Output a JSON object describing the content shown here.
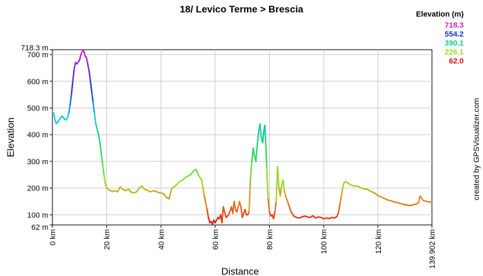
{
  "chart_data": {
    "type": "line",
    "title": "18/ Levico Terme > Brescia",
    "xlabel": "Distance",
    "ylabel": "Elevation",
    "xlim": [
      0,
      139.902
    ],
    "ylim": [
      62,
      718.3
    ],
    "grid": true,
    "x_ticks": [
      {
        "value": 0,
        "label": "0 km"
      },
      {
        "value": 20,
        "label": "20 km"
      },
      {
        "value": 40,
        "label": "40 km"
      },
      {
        "value": 60,
        "label": "60 km"
      },
      {
        "value": 80,
        "label": "80 km"
      },
      {
        "value": 100,
        "label": "100 km"
      },
      {
        "value": 120,
        "label": "120 km"
      },
      {
        "value": 139.902,
        "label": "139.902 km"
      }
    ],
    "y_ticks": [
      {
        "value": 62,
        "label": "62 m"
      },
      {
        "value": 100,
        "label": "100 m"
      },
      {
        "value": 200,
        "label": "200 m"
      },
      {
        "value": 300,
        "label": "300 m"
      },
      {
        "value": 400,
        "label": "400 m"
      },
      {
        "value": 500,
        "label": "500 m"
      },
      {
        "value": 600,
        "label": "600 m"
      },
      {
        "value": 700,
        "label": "700 m"
      },
      {
        "value": 718.3,
        "label": "718.3 m"
      }
    ],
    "legend": {
      "title": "Elevation (m)",
      "position": "top-right",
      "entries": [
        {
          "label": "718.3",
          "color": "#cc22cc"
        },
        {
          "label": "554.2",
          "color": "#1133dd"
        },
        {
          "label": "390.1",
          "color": "#11cc88"
        },
        {
          "label": "226.1",
          "color": "#99dd22"
        },
        {
          "label": "62.0",
          "color": "#dd1111"
        }
      ]
    },
    "color_scale": [
      {
        "value": 62,
        "color": "#dd1111"
      },
      {
        "value": 144,
        "color": "#e87a1a"
      },
      {
        "value": 226.1,
        "color": "#99dd22"
      },
      {
        "value": 308,
        "color": "#33dd55"
      },
      {
        "value": 390.1,
        "color": "#11cc88"
      },
      {
        "value": 472,
        "color": "#11ccdd"
      },
      {
        "value": 554.2,
        "color": "#1133dd"
      },
      {
        "value": 636,
        "color": "#6622dd"
      },
      {
        "value": 718.3,
        "color": "#cc22cc"
      }
    ],
    "series": [
      {
        "points": [
          [
            0,
            485
          ],
          [
            0.5,
            480
          ],
          [
            1,
            450
          ],
          [
            1.5,
            442
          ],
          [
            2,
            448
          ],
          [
            3,
            462
          ],
          [
            3.5,
            470
          ],
          [
            4,
            465
          ],
          [
            4.5,
            458
          ],
          [
            5,
            455
          ],
          [
            5.5,
            462
          ],
          [
            6,
            480
          ],
          [
            6.5,
            510
          ],
          [
            7,
            550
          ],
          [
            7.5,
            600
          ],
          [
            8,
            645
          ],
          [
            8.5,
            670
          ],
          [
            9,
            665
          ],
          [
            9.5,
            672
          ],
          [
            10,
            680
          ],
          [
            10.5,
            700
          ],
          [
            11,
            712
          ],
          [
            11.3,
            718
          ],
          [
            11.7,
            710
          ],
          [
            12,
            695
          ],
          [
            12.5,
            690
          ],
          [
            13,
            665
          ],
          [
            13.5,
            640
          ],
          [
            14,
            600
          ],
          [
            14.5,
            560
          ],
          [
            15,
            520
          ],
          [
            15.5,
            480
          ],
          [
            16,
            440
          ],
          [
            16.5,
            420
          ],
          [
            17,
            400
          ],
          [
            17.5,
            370
          ],
          [
            18,
            330
          ],
          [
            18.5,
            290
          ],
          [
            19,
            250
          ],
          [
            19.5,
            215
          ],
          [
            20,
            200
          ],
          [
            21,
            192
          ],
          [
            22,
            188
          ],
          [
            23,
            190
          ],
          [
            24,
            186
          ],
          [
            25,
            205
          ],
          [
            26,
            195
          ],
          [
            27,
            190
          ],
          [
            28,
            196
          ],
          [
            29,
            185
          ],
          [
            30,
            182
          ],
          [
            31,
            186
          ],
          [
            32,
            200
          ],
          [
            33,
            208
          ],
          [
            34,
            195
          ],
          [
            35,
            192
          ],
          [
            36,
            186
          ],
          [
            37,
            190
          ],
          [
            38,
            188
          ],
          [
            39,
            184
          ],
          [
            40,
            182
          ],
          [
            41,
            178
          ],
          [
            42,
            165
          ],
          [
            43,
            160
          ],
          [
            44,
            200
          ],
          [
            45,
            205
          ],
          [
            46,
            215
          ],
          [
            47,
            225
          ],
          [
            48,
            230
          ],
          [
            49,
            240
          ],
          [
            50,
            245
          ],
          [
            51,
            250
          ],
          [
            52,
            265
          ],
          [
            53,
            270
          ],
          [
            54,
            245
          ],
          [
            55,
            230
          ],
          [
            55.5,
            200
          ],
          [
            56,
            170
          ],
          [
            57,
            120
          ],
          [
            57.5,
            90
          ],
          [
            58,
            70
          ],
          [
            58.5,
            75
          ],
          [
            59,
            65
          ],
          [
            59.5,
            80
          ],
          [
            60,
            70
          ],
          [
            61,
            90
          ],
          [
            61.5,
            85
          ],
          [
            62,
            100
          ],
          [
            62.5,
            70
          ],
          [
            63,
            130
          ],
          [
            63.5,
            110
          ],
          [
            64,
            90
          ],
          [
            65,
            100
          ],
          [
            66,
            130
          ],
          [
            66.5,
            105
          ],
          [
            67,
            150
          ],
          [
            67.5,
            120
          ],
          [
            68,
            110
          ],
          [
            69,
            150
          ],
          [
            69.5,
            130
          ],
          [
            70,
            90
          ],
          [
            71,
            120
          ],
          [
            71.5,
            100
          ],
          [
            72,
            100
          ],
          [
            72.5,
            110
          ],
          [
            73,
            235
          ],
          [
            73.5,
            300
          ],
          [
            74,
            350
          ],
          [
            74.5,
            320
          ],
          [
            75,
            300
          ],
          [
            75.5,
            360
          ],
          [
            76,
            410
          ],
          [
            76.5,
            440
          ],
          [
            77,
            390
          ],
          [
            77.5,
            370
          ],
          [
            78,
            420
          ],
          [
            78.3,
            435
          ],
          [
            78.6,
            380
          ],
          [
            79,
            280
          ],
          [
            79.5,
            160
          ],
          [
            80,
            110
          ],
          [
            80.5,
            95
          ],
          [
            81,
            100
          ],
          [
            81.5,
            85
          ],
          [
            82,
            110
          ],
          [
            82.5,
            150
          ],
          [
            83,
            280
          ],
          [
            83.5,
            200
          ],
          [
            84,
            170
          ],
          [
            84.5,
            210
          ],
          [
            85,
            230
          ],
          [
            85.5,
            190
          ],
          [
            86,
            170
          ],
          [
            87,
            140
          ],
          [
            88,
            110
          ],
          [
            89,
            95
          ],
          [
            90,
            90
          ],
          [
            91,
            88
          ],
          [
            92,
            92
          ],
          [
            93,
            95
          ],
          [
            94,
            92
          ],
          [
            95,
            90
          ],
          [
            96,
            96
          ],
          [
            97,
            88
          ],
          [
            98,
            92
          ],
          [
            99,
            90
          ],
          [
            100,
            85
          ],
          [
            101,
            88
          ],
          [
            102,
            86
          ],
          [
            103,
            90
          ],
          [
            104,
            88
          ],
          [
            105,
            95
          ],
          [
            105.5,
            110
          ],
          [
            106,
            140
          ],
          [
            106.5,
            170
          ],
          [
            107,
            200
          ],
          [
            107.5,
            220
          ],
          [
            108,
            225
          ],
          [
            109,
            218
          ],
          [
            110,
            212
          ],
          [
            111,
            208
          ],
          [
            112,
            208
          ],
          [
            113,
            205
          ],
          [
            114,
            200
          ],
          [
            115,
            197
          ],
          [
            116,
            195
          ],
          [
            117,
            190
          ],
          [
            118,
            185
          ],
          [
            119,
            180
          ],
          [
            120,
            172
          ],
          [
            121,
            168
          ],
          [
            122,
            163
          ],
          [
            123,
            158
          ],
          [
            124,
            154
          ],
          [
            125,
            152
          ],
          [
            126,
            148
          ],
          [
            127,
            146
          ],
          [
            128,
            143
          ],
          [
            129,
            140
          ],
          [
            130,
            138
          ],
          [
            131,
            136
          ],
          [
            132,
            134
          ],
          [
            133,
            138
          ],
          [
            134,
            140
          ],
          [
            135,
            145
          ],
          [
            135.5,
            170
          ],
          [
            136,
            165
          ],
          [
            136.5,
            155
          ],
          [
            137,
            152
          ],
          [
            138,
            150
          ],
          [
            139,
            148
          ],
          [
            139.902,
            148
          ]
        ]
      }
    ]
  },
  "credit": "created by GPSVisualizer.com"
}
